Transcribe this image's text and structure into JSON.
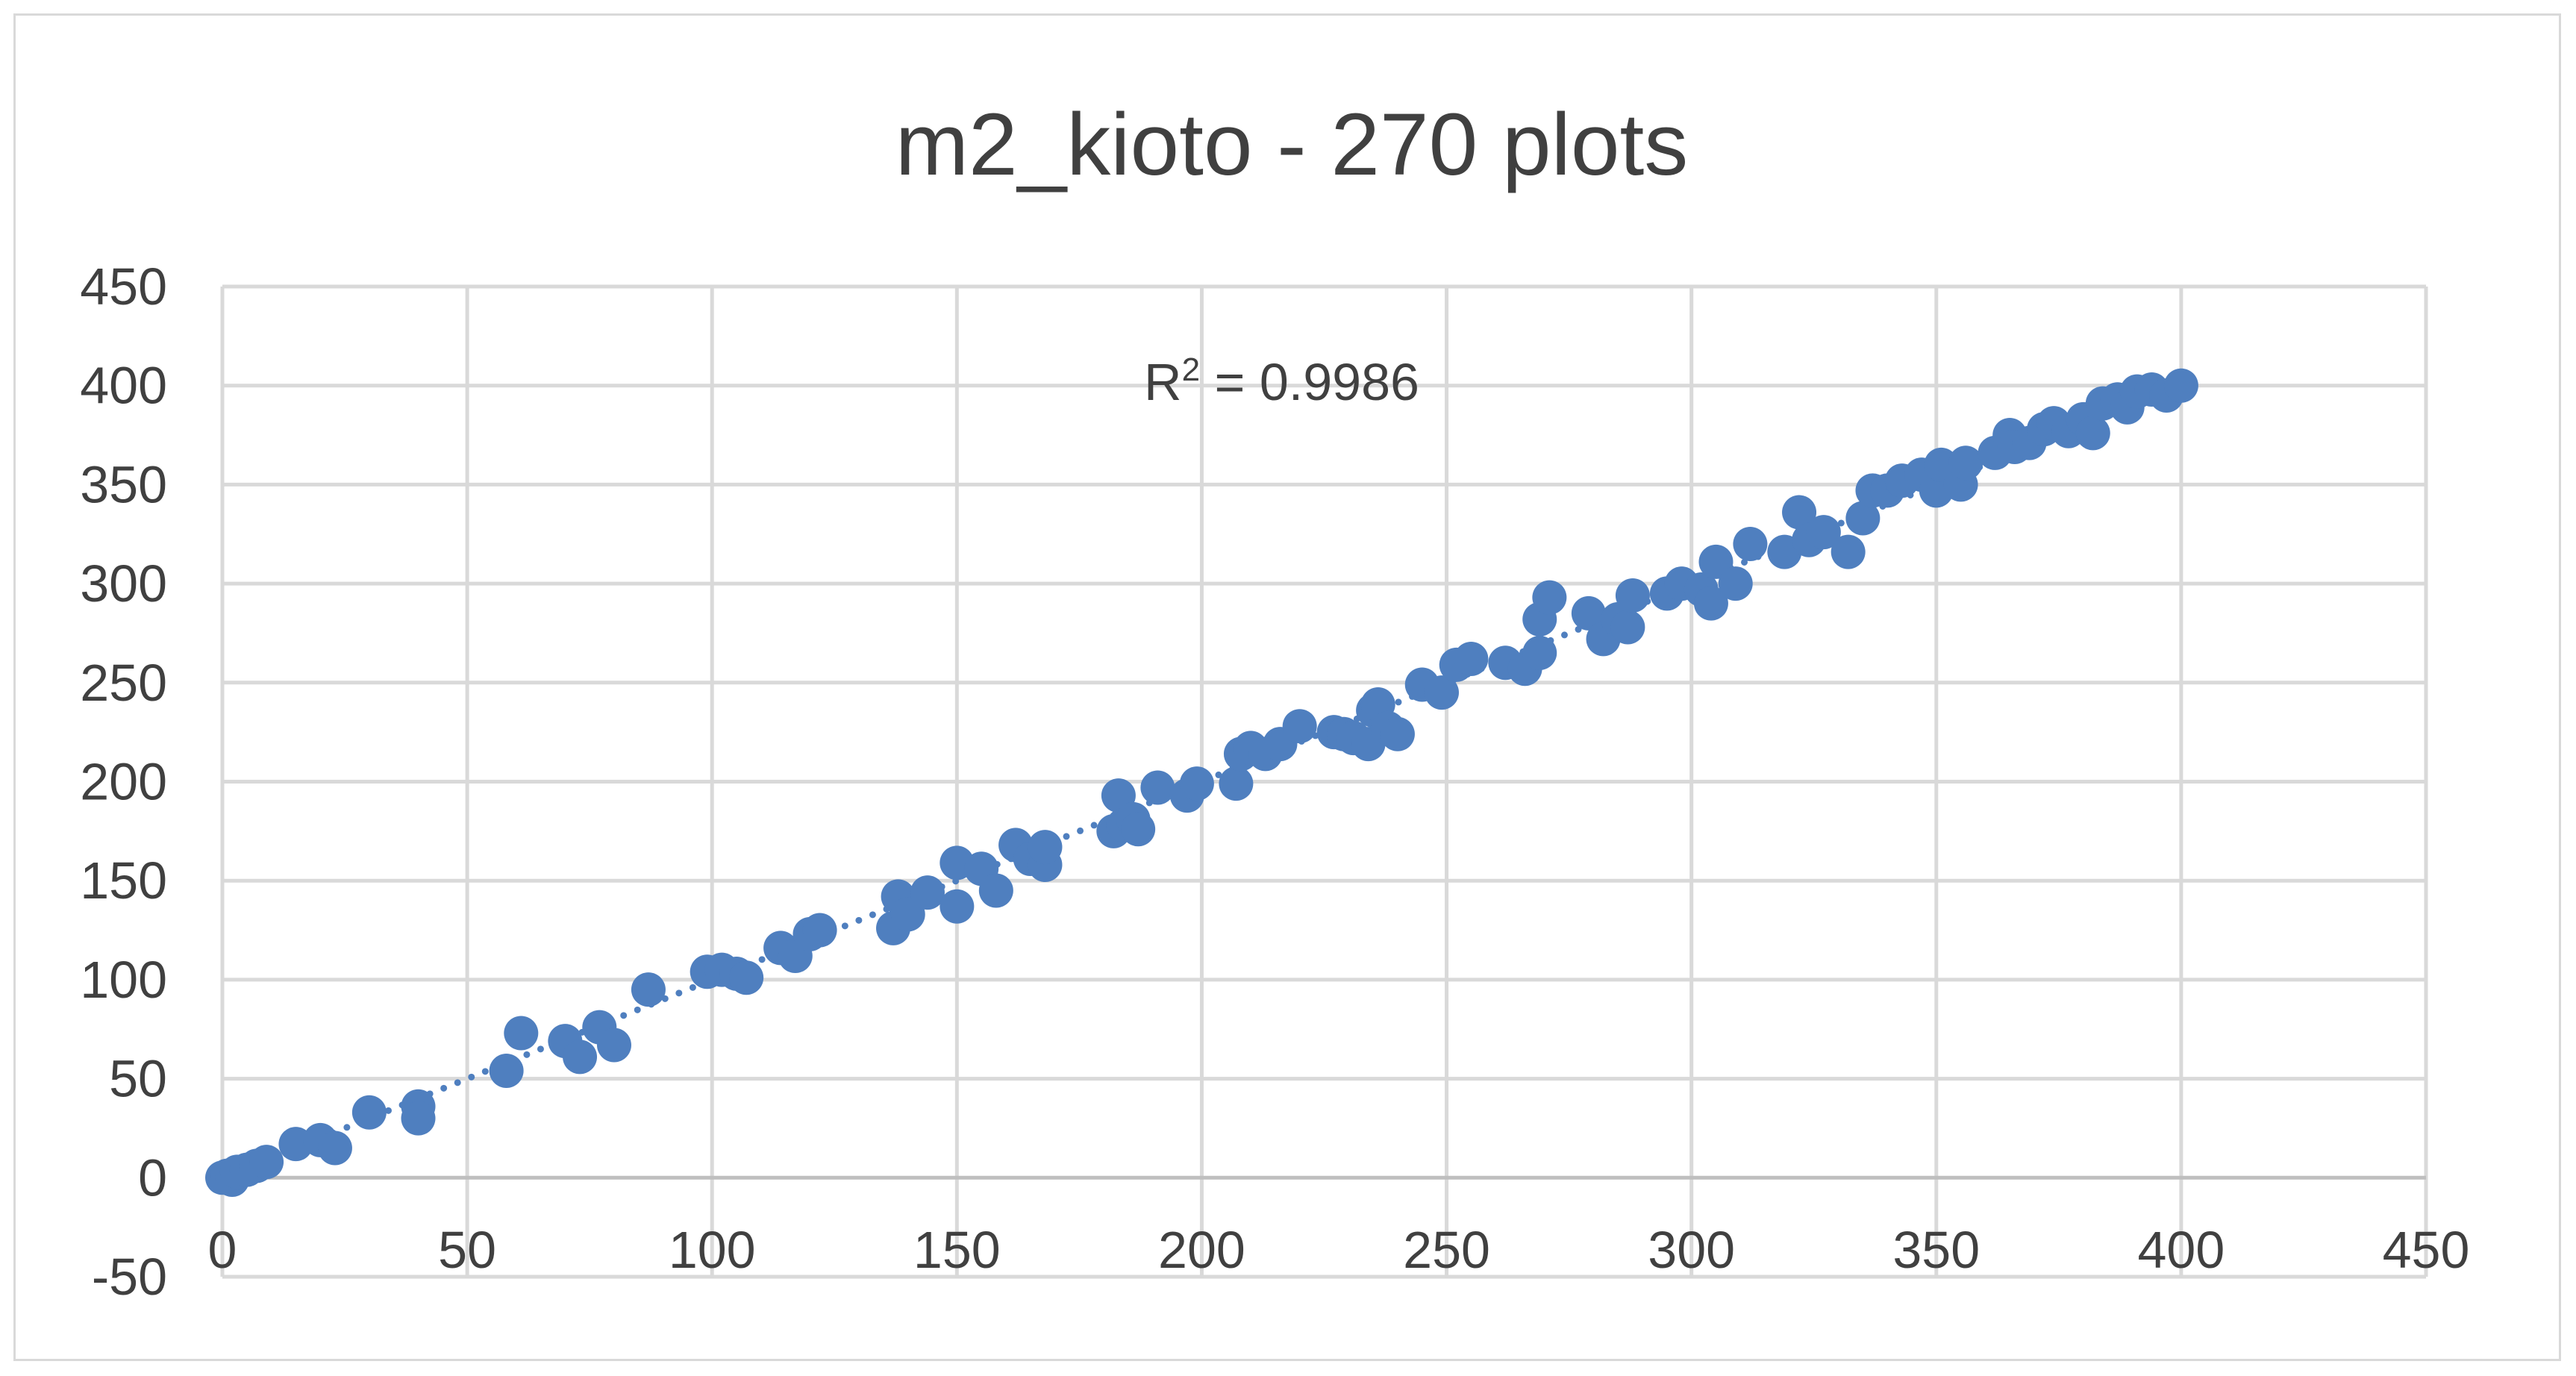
{
  "chart_data": {
    "type": "scatter",
    "title": "m2_kioto - 270 plots",
    "xlabel": "",
    "ylabel": "",
    "xlim": [
      0,
      450
    ],
    "ylim": [
      -50,
      450
    ],
    "x_ticks": [
      "0",
      "50",
      "100",
      "150",
      "200",
      "250",
      "300",
      "350",
      "400",
      "450"
    ],
    "y_ticks": [
      "-50",
      "0",
      "50",
      "100",
      "150",
      "200",
      "250",
      "300",
      "350",
      "400",
      "450"
    ],
    "grid": true,
    "marker_color": "#4f7fbf",
    "trendline": {
      "type": "linear",
      "slope": 1.0,
      "intercept": 0,
      "from": 0,
      "to": 400,
      "color": "#4f7fbf",
      "style": "dotted"
    },
    "r_squared_label": {
      "prefix": "R",
      "sup": "2",
      "suffix": " = 0.9986"
    },
    "series": [
      {
        "name": "m2_kioto",
        "points": [
          [
            0,
            0
          ],
          [
            1,
            1
          ],
          [
            2,
            -1
          ],
          [
            3,
            3
          ],
          [
            5,
            4
          ],
          [
            7,
            6
          ],
          [
            9,
            8
          ],
          [
            15,
            17
          ],
          [
            20,
            19
          ],
          [
            23,
            15
          ],
          [
            30,
            33
          ],
          [
            40,
            36
          ],
          [
            40,
            30
          ],
          [
            58,
            54
          ],
          [
            61,
            73
          ],
          [
            70,
            69
          ],
          [
            73,
            61
          ],
          [
            77,
            76
          ],
          [
            80,
            67
          ],
          [
            87,
            95
          ],
          [
            99,
            104
          ],
          [
            102,
            105
          ],
          [
            105,
            103
          ],
          [
            107,
            101
          ],
          [
            114,
            116
          ],
          [
            117,
            112
          ],
          [
            120,
            123
          ],
          [
            122,
            125
          ],
          [
            137,
            126
          ],
          [
            138,
            142
          ],
          [
            140,
            133
          ],
          [
            144,
            144
          ],
          [
            150,
            137
          ],
          [
            150,
            159
          ],
          [
            155,
            156
          ],
          [
            158,
            145
          ],
          [
            162,
            168
          ],
          [
            165,
            161
          ],
          [
            168,
            158
          ],
          [
            168,
            167
          ],
          [
            182,
            175
          ],
          [
            183,
            193
          ],
          [
            184,
            178
          ],
          [
            186,
            181
          ],
          [
            187,
            176
          ],
          [
            191,
            197
          ],
          [
            197,
            193
          ],
          [
            199,
            199
          ],
          [
            207,
            199
          ],
          [
            208,
            214
          ],
          [
            210,
            217
          ],
          [
            213,
            214
          ],
          [
            216,
            219
          ],
          [
            220,
            228
          ],
          [
            227,
            225
          ],
          [
            229,
            224
          ],
          [
            231,
            222
          ],
          [
            234,
            219
          ],
          [
            235,
            236
          ],
          [
            236,
            239
          ],
          [
            238,
            227
          ],
          [
            240,
            224
          ],
          [
            245,
            249
          ],
          [
            249,
            245
          ],
          [
            252,
            259
          ],
          [
            255,
            262
          ],
          [
            262,
            260
          ],
          [
            266,
            257
          ],
          [
            269,
            265
          ],
          [
            269,
            282
          ],
          [
            271,
            293
          ],
          [
            279,
            285
          ],
          [
            282,
            272
          ],
          [
            285,
            282
          ],
          [
            287,
            278
          ],
          [
            288,
            294
          ],
          [
            295,
            295
          ],
          [
            298,
            300
          ],
          [
            302,
            297
          ],
          [
            305,
            311
          ],
          [
            304,
            290
          ],
          [
            309,
            300
          ],
          [
            312,
            320
          ],
          [
            319,
            316
          ],
          [
            322,
            336
          ],
          [
            324,
            322
          ],
          [
            327,
            326
          ],
          [
            332,
            316
          ],
          [
            335,
            333
          ],
          [
            337,
            347
          ],
          [
            340,
            347
          ],
          [
            343,
            352
          ],
          [
            347,
            355
          ],
          [
            350,
            347
          ],
          [
            351,
            360
          ],
          [
            355,
            350
          ],
          [
            356,
            361
          ],
          [
            362,
            366
          ],
          [
            365,
            375
          ],
          [
            366,
            369
          ],
          [
            369,
            371
          ],
          [
            372,
            378
          ],
          [
            374,
            381
          ],
          [
            377,
            377
          ],
          [
            380,
            383
          ],
          [
            382,
            376
          ],
          [
            384,
            391
          ],
          [
            387,
            393
          ],
          [
            389,
            389
          ],
          [
            391,
            397
          ],
          [
            394,
            398
          ],
          [
            397,
            395
          ],
          [
            400,
            400
          ]
        ]
      }
    ]
  }
}
